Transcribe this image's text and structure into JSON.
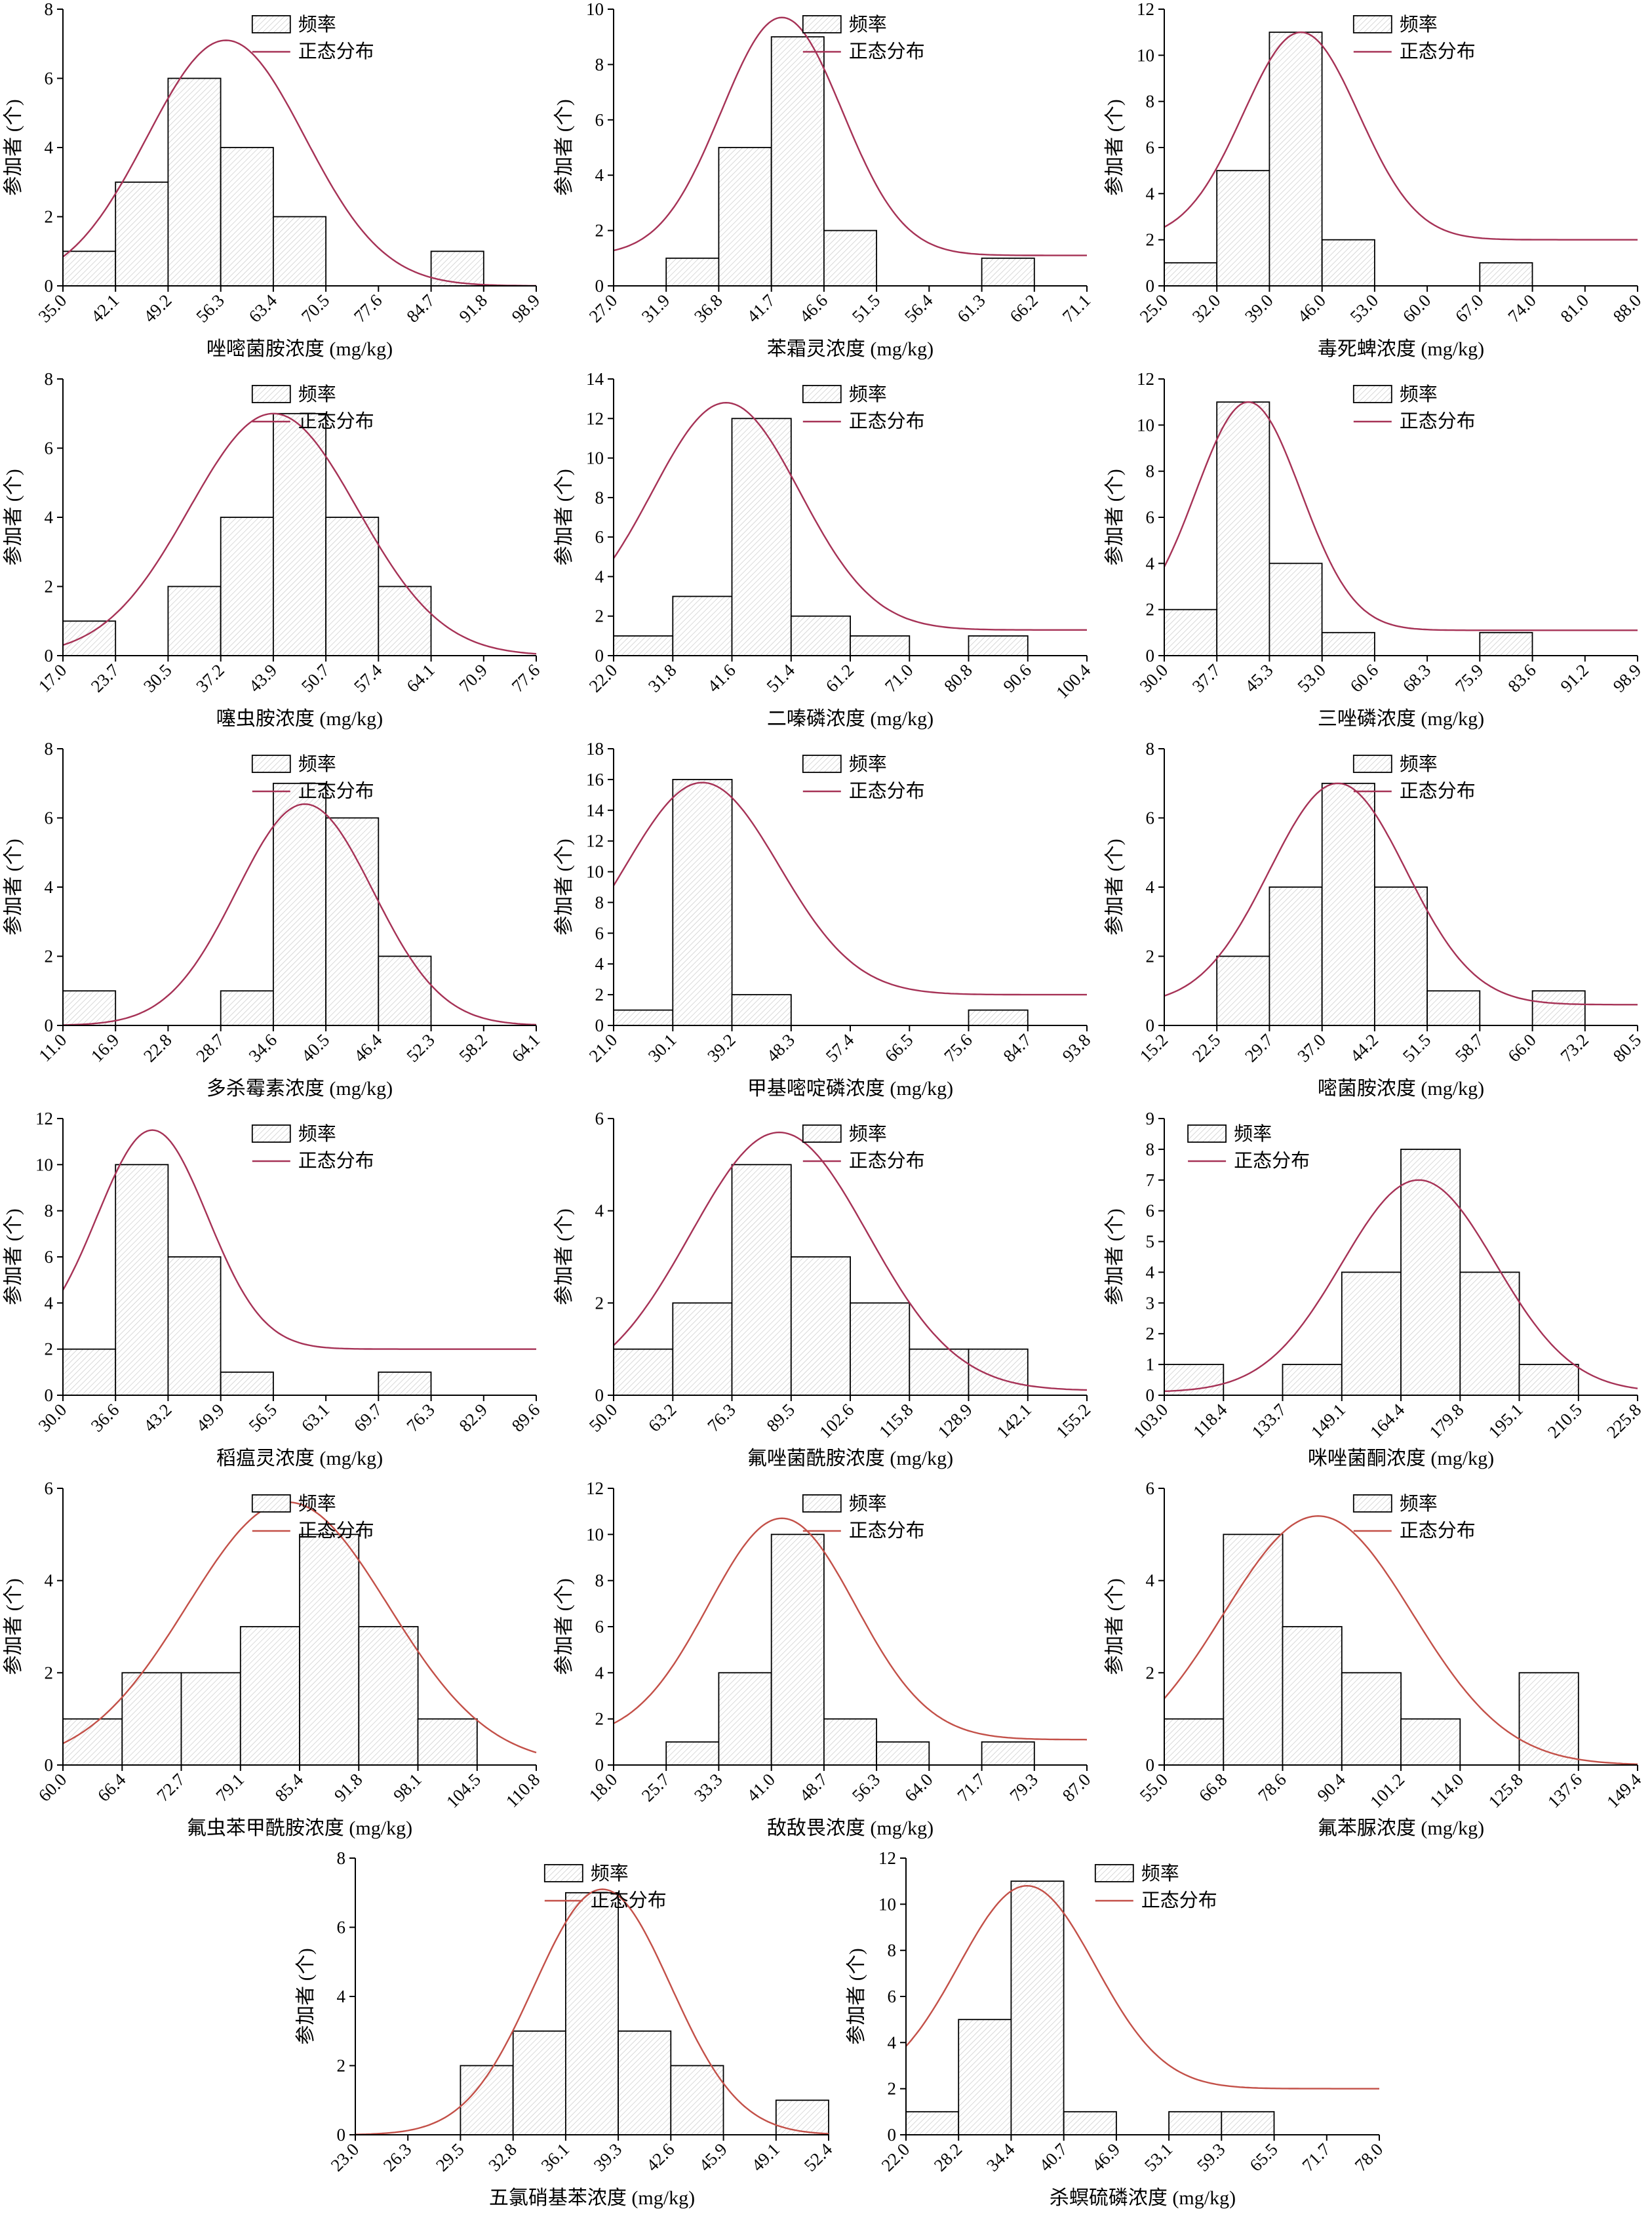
{
  "figure": {
    "ylabel": "参加者 (个)",
    "legend_frequency": "频率",
    "legend_normal": "正态分布",
    "unit_suffix": " (mg/kg)"
  },
  "chart_data": [
    {
      "type": "histogram",
      "xlabel": "唑嘧菌胺浓度 (mg/kg)",
      "ylabel": "参加者 (个)",
      "legend": [
        "频率",
        "正态分布"
      ],
      "x_ticks": [
        "35.0",
        "42.1",
        "49.2",
        "56.3",
        "63.4",
        "70.5",
        "77.6",
        "84.7",
        "91.8",
        "98.9"
      ],
      "values": [
        1,
        3,
        6,
        4,
        2,
        0,
        0,
        1,
        0
      ],
      "ymax": 8,
      "ystep": 2,
      "curve": {
        "mu": 3.1,
        "sd": 1.5,
        "peak": 7.1,
        "base": 0
      },
      "curve_color": "#a63256",
      "legend_pos": "right"
    },
    {
      "type": "histogram",
      "xlabel": "苯霜灵浓度 (mg/kg)",
      "ylabel": "参加者 (个)",
      "legend": [
        "频率",
        "正态分布"
      ],
      "x_ticks": [
        "27.0",
        "31.9",
        "36.8",
        "41.7",
        "46.6",
        "51.5",
        "56.4",
        "61.3",
        "66.2",
        "71.1"
      ],
      "values": [
        0,
        1,
        5,
        9,
        2,
        0,
        0,
        1,
        0
      ],
      "ymax": 10,
      "ystep": 2,
      "curve": {
        "mu": 3.2,
        "sd": 1.15,
        "peak": 9.7,
        "base": 1.1
      },
      "curve_color": "#a63256",
      "legend_pos": "right"
    },
    {
      "type": "histogram",
      "xlabel": "毒死蜱浓度 (mg/kg)",
      "ylabel": "参加者 (个)",
      "legend": [
        "频率",
        "正态分布"
      ],
      "x_ticks": [
        "25.0",
        "32.0",
        "39.0",
        "46.0",
        "53.0",
        "60.0",
        "67.0",
        "74.0",
        "81.0",
        "88.0"
      ],
      "values": [
        1,
        5,
        11,
        2,
        0,
        0,
        1,
        0,
        0
      ],
      "ymax": 12,
      "ystep": 2,
      "curve": {
        "mu": 2.6,
        "sd": 1.1,
        "peak": 11.0,
        "base": 2.0
      },
      "curve_color": "#a63256",
      "legend_pos": "right"
    },
    {
      "type": "histogram",
      "xlabel": "噻虫胺浓度 (mg/kg)",
      "ylabel": "参加者 (个)",
      "legend": [
        "频率",
        "正态分布"
      ],
      "x_ticks": [
        "17.0",
        "23.7",
        "30.5",
        "37.2",
        "43.9",
        "50.7",
        "57.4",
        "64.1",
        "70.9",
        "77.6"
      ],
      "values": [
        1,
        0,
        2,
        4,
        7,
        4,
        2,
        0,
        0
      ],
      "ymax": 8,
      "ystep": 2,
      "curve": {
        "mu": 4.0,
        "sd": 1.6,
        "peak": 7.0,
        "base": 0
      },
      "curve_color": "#a63256",
      "legend_pos": "right"
    },
    {
      "type": "histogram",
      "xlabel": "二嗪磷浓度 (mg/kg)",
      "ylabel": "参加者 (个)",
      "legend": [
        "频率",
        "正态分布"
      ],
      "x_ticks": [
        "22.0",
        "31.8",
        "41.6",
        "51.4",
        "61.2",
        "71.0",
        "80.8",
        "90.6",
        "100.4"
      ],
      "values": [
        1,
        3,
        12,
        2,
        1,
        0,
        1,
        0
      ],
      "ymax": 14,
      "ystep": 2,
      "curve": {
        "mu": 1.9,
        "sd": 1.25,
        "peak": 12.8,
        "base": 1.3
      },
      "curve_color": "#a63256",
      "legend_pos": "right"
    },
    {
      "type": "histogram",
      "xlabel": "三唑磷浓度 (mg/kg)",
      "ylabel": "参加者 (个)",
      "legend": [
        "频率",
        "正态分布"
      ],
      "x_ticks": [
        "30.0",
        "37.7",
        "45.3",
        "53.0",
        "60.6",
        "68.3",
        "75.9",
        "83.6",
        "91.2",
        "98.9"
      ],
      "values": [
        2,
        11,
        4,
        1,
        0,
        0,
        1,
        0,
        0
      ],
      "ymax": 12,
      "ystep": 2,
      "curve": {
        "mu": 1.6,
        "sd": 1.0,
        "peak": 11.0,
        "base": 1.1
      },
      "curve_color": "#a63256",
      "legend_pos": "right"
    },
    {
      "type": "histogram",
      "xlabel": "多杀霉素浓度 (mg/kg)",
      "ylabel": "参加者 (个)",
      "legend": [
        "频率",
        "正态分布"
      ],
      "x_ticks": [
        "11.0",
        "16.9",
        "22.8",
        "28.7",
        "34.6",
        "40.5",
        "46.4",
        "52.3",
        "58.2",
        "64.1"
      ],
      "values": [
        1,
        0,
        0,
        1,
        7,
        6,
        2,
        0,
        0
      ],
      "ymax": 8,
      "ystep": 2,
      "curve": {
        "mu": 4.6,
        "sd": 1.3,
        "peak": 6.4,
        "base": 0
      },
      "curve_color": "#a63256",
      "legend_pos": "right"
    },
    {
      "type": "histogram",
      "xlabel": "甲基嘧啶磷浓度 (mg/kg)",
      "ylabel": "参加者 (个)",
      "legend": [
        "频率",
        "正态分布"
      ],
      "x_ticks": [
        "21.0",
        "30.1",
        "39.2",
        "48.3",
        "57.4",
        "66.5",
        "75.6",
        "84.7",
        "93.8"
      ],
      "values": [
        1,
        16,
        2,
        0,
        0,
        0,
        1,
        0
      ],
      "ymax": 18,
      "ystep": 2,
      "curve": {
        "mu": 1.5,
        "sd": 1.3,
        "peak": 15.8,
        "base": 2.0
      },
      "curve_color": "#a63256",
      "legend_pos": "right"
    },
    {
      "type": "histogram",
      "xlabel": "嘧菌胺浓度 (mg/kg)",
      "ylabel": "参加者 (个)",
      "legend": [
        "频率",
        "正态分布"
      ],
      "x_ticks": [
        "15.2",
        "22.5",
        "29.7",
        "37.0",
        "44.2",
        "51.5",
        "58.7",
        "66.0",
        "73.2",
        "80.5"
      ],
      "values": [
        0,
        2,
        4,
        7,
        4,
        1,
        0,
        1,
        0
      ],
      "ymax": 8,
      "ystep": 2,
      "curve": {
        "mu": 3.3,
        "sd": 1.3,
        "peak": 7.0,
        "base": 0.6
      },
      "curve_color": "#a63256",
      "legend_pos": "right"
    },
    {
      "type": "histogram",
      "xlabel": "稻瘟灵浓度 (mg/kg)",
      "ylabel": "参加者 (个)",
      "legend": [
        "频率",
        "正态分布"
      ],
      "x_ticks": [
        "30.0",
        "36.6",
        "43.2",
        "49.9",
        "56.5",
        "63.1",
        "69.7",
        "76.3",
        "82.9",
        "89.6"
      ],
      "values": [
        2,
        10,
        6,
        1,
        0,
        0,
        1,
        0,
        0
      ],
      "ymax": 12,
      "ystep": 2,
      "curve": {
        "mu": 1.7,
        "sd": 1.05,
        "peak": 11.5,
        "base": 2.0
      },
      "curve_color": "#a63256",
      "legend_pos": "right"
    },
    {
      "type": "histogram",
      "xlabel": "氟唑菌酰胺浓度 (mg/kg)",
      "ylabel": "参加者 (个)",
      "legend": [
        "频率",
        "正态分布"
      ],
      "x_ticks": [
        "50.0",
        "63.2",
        "76.3",
        "89.5",
        "102.6",
        "115.8",
        "128.9",
        "142.1",
        "155.2"
      ],
      "values": [
        1,
        2,
        5,
        3,
        2,
        1,
        1,
        0
      ],
      "ymax": 6,
      "ystep": 2,
      "curve": {
        "mu": 2.8,
        "sd": 1.5,
        "peak": 5.7,
        "base": 0.1
      },
      "curve_color": "#a63256",
      "legend_pos": "right"
    },
    {
      "type": "histogram",
      "xlabel": "咪唑菌酮浓度 (mg/kg)",
      "ylabel": "参加者 (个)",
      "legend": [
        "频率",
        "正态分布"
      ],
      "x_ticks": [
        "103.0",
        "118.4",
        "133.7",
        "149.1",
        "164.4",
        "179.8",
        "195.1",
        "210.5",
        "225.8"
      ],
      "values": [
        1,
        0,
        1,
        4,
        8,
        4,
        1,
        0
      ],
      "ymax": 9,
      "ystep": 1,
      "curve": {
        "mu": 4.3,
        "sd": 1.3,
        "peak": 7.0,
        "base": 0.1
      },
      "curve_color": "#a63256",
      "legend_pos": "left"
    },
    {
      "type": "histogram",
      "xlabel": "氟虫苯甲酰胺浓度 (mg/kg)",
      "ylabel": "参加者 (个)",
      "legend": [
        "频率",
        "正态分布"
      ],
      "x_ticks": [
        "60.0",
        "66.4",
        "72.7",
        "79.1",
        "85.4",
        "91.8",
        "98.1",
        "104.5",
        "110.8"
      ],
      "values": [
        1,
        2,
        2,
        3,
        5,
        3,
        1,
        0
      ],
      "ymax": 6,
      "ystep": 2,
      "curve": {
        "mu": 3.8,
        "sd": 1.7,
        "peak": 5.7,
        "base": 0
      },
      "curve_color": "#c35048",
      "legend_pos": "right"
    },
    {
      "type": "histogram",
      "xlabel": "敌敌畏浓度 (mg/kg)",
      "ylabel": "参加者 (个)",
      "legend": [
        "频率",
        "正态分布"
      ],
      "x_ticks": [
        "18.0",
        "25.7",
        "33.3",
        "41.0",
        "48.7",
        "56.3",
        "64.0",
        "71.7",
        "79.3",
        "87.0"
      ],
      "values": [
        0,
        1,
        4,
        10,
        2,
        1,
        0,
        1,
        0
      ],
      "ymax": 12,
      "ystep": 2,
      "curve": {
        "mu": 3.2,
        "sd": 1.4,
        "peak": 10.7,
        "base": 1.1
      },
      "curve_color": "#c35048",
      "legend_pos": "right"
    },
    {
      "type": "histogram",
      "xlabel": "氟苯脲浓度 (mg/kg)",
      "ylabel": "参加者 (个)",
      "legend": [
        "频率",
        "正态分布"
      ],
      "x_ticks": [
        "55.0",
        "66.8",
        "78.6",
        "90.4",
        "101.2",
        "114.0",
        "125.8",
        "137.6",
        "149.4"
      ],
      "values": [
        1,
        5,
        3,
        2,
        1,
        0,
        2,
        0
      ],
      "ymax": 6,
      "ystep": 2,
      "curve": {
        "mu": 2.6,
        "sd": 1.6,
        "peak": 5.4,
        "base": 0
      },
      "curve_color": "#c35048",
      "legend_pos": "right"
    },
    {
      "type": "histogram",
      "xlabel": "五氯硝基苯浓度 (mg/kg)",
      "ylabel": "参加者 (个)",
      "legend": [
        "频率",
        "正态分布"
      ],
      "x_ticks": [
        "23.0",
        "26.3",
        "29.5",
        "32.8",
        "36.1",
        "39.3",
        "42.6",
        "45.9",
        "49.1",
        "52.4"
      ],
      "values": [
        0,
        0,
        2,
        3,
        7,
        3,
        2,
        0,
        1
      ],
      "ymax": 8,
      "ystep": 2,
      "curve": {
        "mu": 4.7,
        "sd": 1.3,
        "peak": 7.1,
        "base": 0
      },
      "curve_color": "#c35048",
      "legend_pos": "right"
    },
    {
      "type": "histogram",
      "xlabel": "杀螟硫磷浓度 (mg/kg)",
      "ylabel": "参加者 (个)",
      "legend": [
        "频率",
        "正态分布"
      ],
      "x_ticks": [
        "22.0",
        "28.2",
        "34.4",
        "40.7",
        "46.9",
        "53.1",
        "59.3",
        "65.5",
        "71.7",
        "78.0"
      ],
      "values": [
        1,
        5,
        11,
        1,
        0,
        1,
        1,
        0,
        0
      ],
      "ymax": 12,
      "ystep": 2,
      "curve": {
        "mu": 2.3,
        "sd": 1.3,
        "peak": 10.8,
        "base": 2.0
      },
      "curve_color": "#c35048",
      "legend_pos": "right"
    }
  ]
}
